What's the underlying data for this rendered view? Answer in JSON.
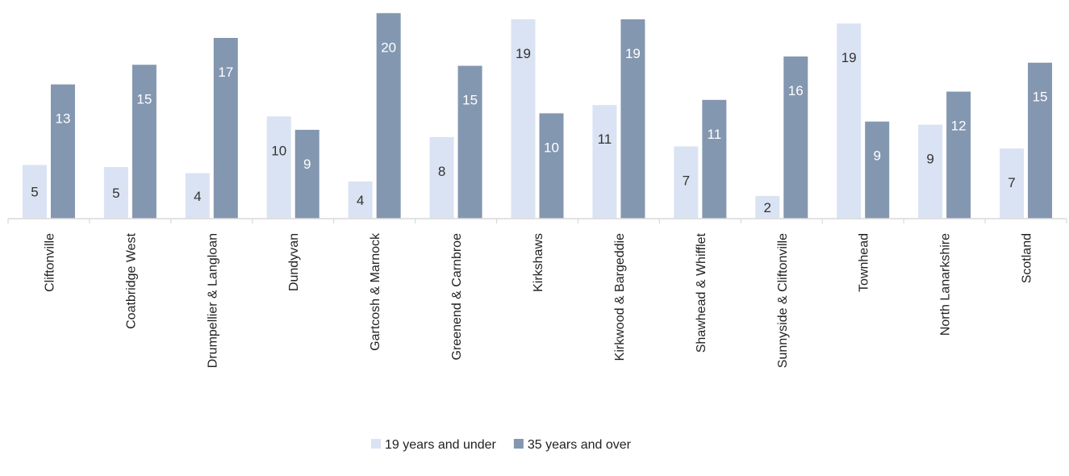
{
  "chart_data": {
    "type": "bar",
    "title": "",
    "xlabel": "",
    "ylabel": "",
    "ylim": [
      0,
      20
    ],
    "grid": false,
    "legend_position": "bottom",
    "categories": [
      "Cliftonville",
      "Coatbridge West",
      "Drumpellier & Langloan",
      "Dundyvan",
      "Gartcosh & Marnock",
      "Greenend & Carnbroe",
      "Kirkshaws",
      "Kirkwood & Bargeddie",
      "Shawhead & Whifflet",
      "Sunnyside & Cliftonville",
      "Townhead",
      "North Lanarkshire",
      "Scotland"
    ],
    "series": [
      {
        "name": "19 years and under",
        "color": "#dae3f3",
        "label_color": "#333333",
        "values": [
          5,
          5,
          4,
          10,
          4,
          8,
          19,
          11,
          7,
          2,
          19,
          9,
          7
        ],
        "bar_values": [
          5.2,
          5.0,
          4.4,
          9.9,
          3.6,
          7.9,
          19.3,
          11.0,
          7.0,
          2.2,
          18.9,
          9.1,
          6.8
        ]
      },
      {
        "name": "35 years and over",
        "color": "#8497b0",
        "label_color": "#ffffff",
        "values": [
          13,
          15,
          17,
          9,
          20,
          15,
          10,
          19,
          11,
          16,
          9,
          12,
          15
        ],
        "bar_values": [
          13.0,
          14.9,
          17.5,
          8.6,
          19.9,
          14.8,
          10.2,
          19.3,
          11.5,
          15.7,
          9.4,
          12.3,
          15.1
        ]
      }
    ]
  }
}
